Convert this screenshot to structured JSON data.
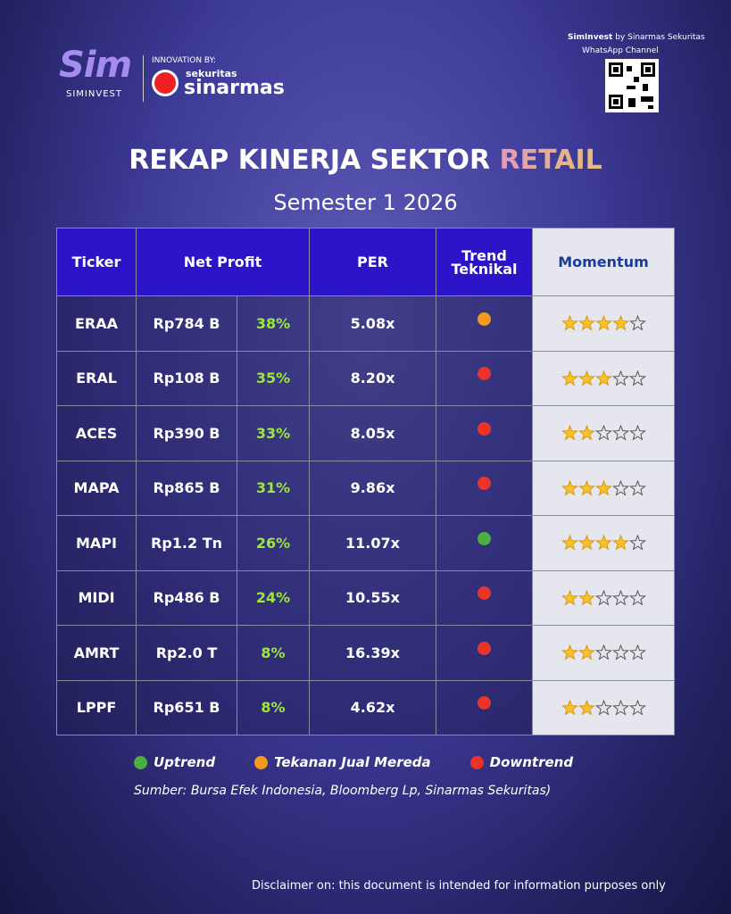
{
  "header": {
    "logo_text": "Sim",
    "logo_caption": "SIMINVEST",
    "innovation_label": "INNOVATION BY:",
    "partner_small": "sekuritas",
    "partner_big": "sinarmas",
    "channel_brand": "SimInvest",
    "channel_by": "by Sinarmas Sekuritas",
    "channel_label": "WhatsApp Channel"
  },
  "title": {
    "main": "REKAP KINERJA SEKTOR",
    "highlight": "RETAIL",
    "subtitle": "Semester 1 2026"
  },
  "table": {
    "headers": [
      "Ticker",
      "Net Profit",
      "PER",
      "Trend Teknikal",
      "Momentum"
    ],
    "momentum_max": 5,
    "rows": [
      {
        "ticker": "ERAA",
        "net_profit": "Rp784 B",
        "growth": "38%",
        "per": "5.08x",
        "trend": "Tekanan Jual Mereda",
        "momentum": 4
      },
      {
        "ticker": "ERAL",
        "net_profit": "Rp108 B",
        "growth": "35%",
        "per": "8.20x",
        "trend": "Downtrend",
        "momentum": 3
      },
      {
        "ticker": "ACES",
        "net_profit": "Rp390 B",
        "growth": "33%",
        "per": "8.05x",
        "trend": "Downtrend",
        "momentum": 2
      },
      {
        "ticker": "MAPA",
        "net_profit": "Rp865 B",
        "growth": "31%",
        "per": "9.86x",
        "trend": "Downtrend",
        "momentum": 3
      },
      {
        "ticker": "MAPI",
        "net_profit": "Rp1.2 Tn",
        "growth": "26%",
        "per": "11.07x",
        "trend": "Uptrend",
        "momentum": 4
      },
      {
        "ticker": "MIDI",
        "net_profit": "Rp486 B",
        "growth": "24%",
        "per": "10.55x",
        "trend": "Downtrend",
        "momentum": 2
      },
      {
        "ticker": "AMRT",
        "net_profit": "Rp2.0 T",
        "growth": "8%",
        "per": "16.39x",
        "trend": "Downtrend",
        "momentum": 2
      },
      {
        "ticker": "LPPF",
        "net_profit": "Rp651 B",
        "growth": "8%",
        "per": "4.62x",
        "trend": "Downtrend",
        "momentum": 2
      }
    ]
  },
  "legend": [
    {
      "label": "Uptrend",
      "color": "#4caf3f"
    },
    {
      "label": "Tekanan Jual Mereda",
      "color": "#f59a1b"
    },
    {
      "label": "Downtrend",
      "color": "#e8342a"
    }
  ],
  "source": "Sumber: Bursa Efek Indonesia, Bloomberg Lp, Sinarmas Sekuritas)",
  "disclaimer": "Disclaimer on: this document is intended for information purposes only"
}
